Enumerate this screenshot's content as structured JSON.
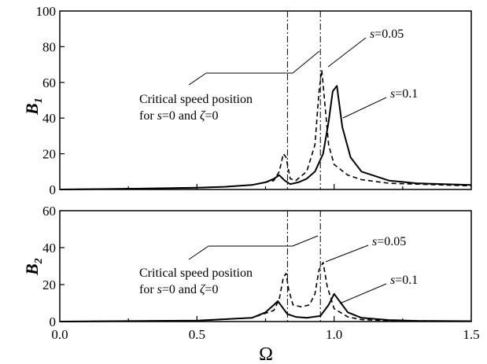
{
  "chart_data": [
    {
      "type": "line",
      "ylabel": "B",
      "ylabel_subscript": "1",
      "xlim": [
        0,
        1.5
      ],
      "ylim": [
        0,
        100
      ],
      "yticks": [
        0,
        20,
        40,
        60,
        80,
        100
      ],
      "ytick_labels": [
        "0",
        "20",
        "40",
        "60",
        "80",
        "100"
      ],
      "critical_speeds": [
        0.83,
        0.95
      ],
      "series": [
        {
          "name": "s=0.1",
          "style": "solid",
          "x": [
            0,
            0.3,
            0.5,
            0.6,
            0.7,
            0.75,
            0.78,
            0.8,
            0.82,
            0.84,
            0.87,
            0.9,
            0.93,
            0.96,
            0.98,
            0.995,
            1.01,
            1.03,
            1.06,
            1.1,
            1.2,
            1.3,
            1.4,
            1.5
          ],
          "y": [
            0,
            0.5,
            1,
            1.5,
            2.5,
            4,
            6,
            8,
            5,
            3,
            4,
            6,
            10,
            20,
            38,
            55,
            58,
            35,
            18,
            10,
            5,
            3.5,
            3,
            2.5
          ]
        },
        {
          "name": "s=0.05",
          "style": "dashed",
          "x": [
            0,
            0.3,
            0.5,
            0.6,
            0.7,
            0.78,
            0.8,
            0.815,
            0.825,
            0.84,
            0.86,
            0.9,
            0.93,
            0.945,
            0.955,
            0.965,
            0.98,
            1.0,
            1.05,
            1.1,
            1.2,
            1.3,
            1.4,
            1.5
          ],
          "y": [
            0,
            0.5,
            1,
            1.5,
            2.5,
            5,
            10,
            20,
            18,
            6,
            5,
            10,
            25,
            55,
            67,
            50,
            25,
            14,
            8,
            5.5,
            3.5,
            3,
            2.5,
            2
          ]
        }
      ],
      "annotations": [
        {
          "text": "=0.05",
          "var": "s",
          "points_to_series": "s=0.05"
        },
        {
          "text": "=0.1",
          "var": "s",
          "points_to_series": "s=0.1"
        },
        {
          "line1": "Critical speed position",
          "line2_prefix": "for ",
          "line2_var1": "s",
          "line2_mid": "=0 and ",
          "line2_var2": "ζ",
          "line2_suffix": "=0"
        }
      ]
    },
    {
      "type": "line",
      "ylabel": "B",
      "ylabel_subscript": "2",
      "xlabel": "Ω",
      "xlim": [
        0,
        1.5
      ],
      "ylim": [
        0,
        60
      ],
      "xticks": [
        0,
        0.5,
        1.0,
        1.5
      ],
      "xtick_labels": [
        "0.0",
        "0.5",
        "1.0",
        "1.5"
      ],
      "yticks": [
        0,
        20,
        40,
        60
      ],
      "ytick_labels": [
        "0",
        "20",
        "40",
        "60"
      ],
      "critical_speeds": [
        0.83,
        0.95
      ],
      "series": [
        {
          "name": "s=0.1",
          "style": "solid",
          "x": [
            0,
            0.5,
            0.7,
            0.75,
            0.78,
            0.795,
            0.81,
            0.83,
            0.86,
            0.9,
            0.95,
            0.98,
            1.0,
            1.02,
            1.05,
            1.1,
            1.2,
            1.3,
            1.5
          ],
          "y": [
            0,
            0.5,
            2,
            5,
            9,
            11,
            8,
            4,
            2.5,
            2,
            3,
            9,
            15,
            11,
            5,
            2,
            0.8,
            0.4,
            0.2
          ]
        },
        {
          "name": "s=0.05",
          "style": "dashed",
          "x": [
            0,
            0.5,
            0.7,
            0.78,
            0.8,
            0.815,
            0.825,
            0.835,
            0.85,
            0.88,
            0.91,
            0.93,
            0.945,
            0.96,
            0.975,
            1.0,
            1.05,
            1.1,
            1.2,
            1.5
          ],
          "y": [
            0,
            0.5,
            2,
            6,
            12,
            24,
            26,
            17,
            9,
            8,
            9,
            15,
            28,
            32,
            19,
            7,
            2.5,
            1,
            0.5,
            0.2
          ]
        }
      ],
      "annotations": [
        {
          "text": "=0.05",
          "var": "s",
          "points_to_series": "s=0.05"
        },
        {
          "text": "=0.1",
          "var": "s",
          "points_to_series": "s=0.1"
        },
        {
          "line1": "Critical speed position",
          "line2_prefix": "for ",
          "line2_var1": "s",
          "line2_mid": "=0 and ",
          "line2_var2": "ζ",
          "line2_suffix": "=0"
        }
      ]
    }
  ]
}
